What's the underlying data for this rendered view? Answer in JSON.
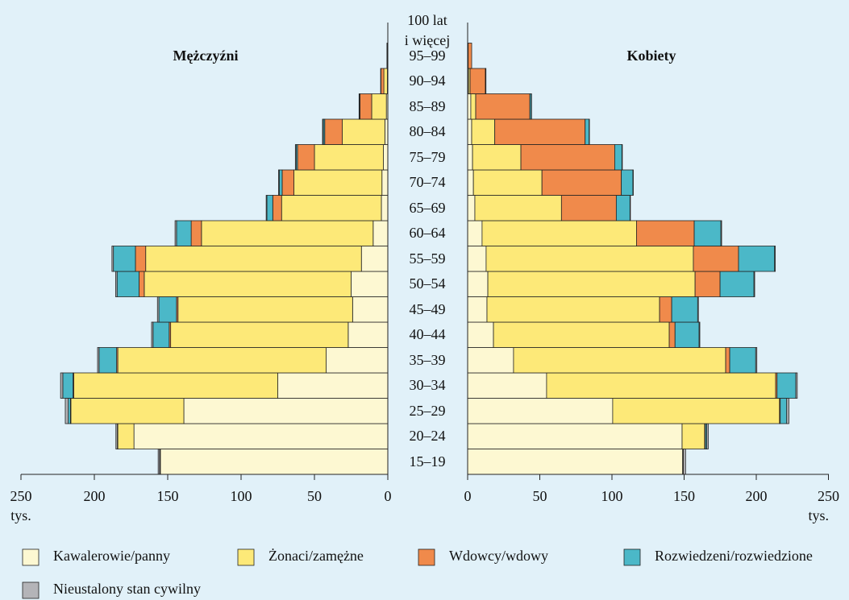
{
  "chart_data": {
    "type": "pyramid",
    "left_title": "Mężczyźni",
    "right_title": "Kobiety",
    "categories": [
      "15–19",
      "20–24",
      "25–29",
      "30–34",
      "35–39",
      "40–44",
      "45–49",
      "50–54",
      "55–59",
      "60–64",
      "65–69",
      "70–74",
      "75–79",
      "80–84",
      "85–89",
      "90–94",
      "95–99",
      "100 lat\ni więcej"
    ],
    "xlim": [
      0,
      250
    ],
    "xticks": [
      0,
      50,
      100,
      150,
      200,
      250
    ],
    "x_unit": "tys.",
    "series": [
      {
        "name": "Kawalerowie/panny",
        "color": "#fdf8d2",
        "left": [
          155,
          173,
          139,
          75,
          42,
          27,
          24,
          25,
          18,
          10,
          4.4,
          4,
          3,
          2,
          1,
          0.3,
          0.1,
          0
        ],
        "right": [
          149,
          148.6,
          100.5,
          54.7,
          31.8,
          17.9,
          13.4,
          14,
          12.8,
          10,
          5,
          4,
          3.4,
          2.8,
          2.2,
          0.6,
          0.2,
          0
        ]
      },
      {
        "name": "Żonaci/zamężne",
        "color": "#fde978",
        "left": [
          0.5,
          11,
          77,
          139,
          142,
          121,
          119,
          141,
          147,
          117,
          68,
          60,
          47,
          29,
          10,
          2.4,
          0.2,
          0
        ],
        "right": [
          0.5,
          15.6,
          115.6,
          158.7,
          147,
          121.8,
          119.6,
          143.6,
          143.6,
          107,
          60,
          47.5,
          33.5,
          16,
          3.4,
          1.1,
          0.2,
          0
        ]
      },
      {
        "name": "Wdowcy/wdowy",
        "color": "#f08a4b",
        "left": [
          0,
          0,
          0.3,
          0.5,
          0.8,
          1,
          1,
          3.5,
          7,
          7,
          6,
          8,
          11.5,
          12,
          8,
          2,
          0.3,
          0
        ],
        "right": [
          0,
          0.5,
          0.5,
          1,
          2.8,
          4,
          8.4,
          17.3,
          31.3,
          40,
          38,
          55,
          65,
          62.6,
          37.5,
          10.6,
          2.4,
          0
        ]
      },
      {
        "name": "Rozwiedzeni/rozwiedzione",
        "color": "#4bb8c8",
        "left": [
          0,
          0.3,
          1.5,
          7,
          12,
          11,
          12,
          15,
          15,
          10,
          4,
          2,
          1,
          1,
          0.3,
          0,
          0,
          0
        ],
        "right": [
          0,
          1,
          4.5,
          13,
          18,
          16.7,
          18,
          23.5,
          25,
          18.5,
          9.5,
          8,
          5,
          2.8,
          1,
          0.3,
          0,
          0
        ]
      },
      {
        "name": "Nieustalony stan cywilny",
        "color": "#b4b4b8",
        "left": [
          1,
          1,
          2,
          1.5,
          1,
          1,
          1,
          1,
          1,
          1,
          0.5,
          0.5,
          0.5,
          0.5,
          0.3,
          0.2,
          0,
          0
        ],
        "right": [
          1.5,
          1,
          1.5,
          1,
          0.8,
          0.5,
          0.5,
          0.5,
          0.5,
          0.5,
          0.3,
          0.3,
          0.3,
          0.2,
          0.2,
          0.1,
          0,
          0
        ]
      }
    ]
  }
}
